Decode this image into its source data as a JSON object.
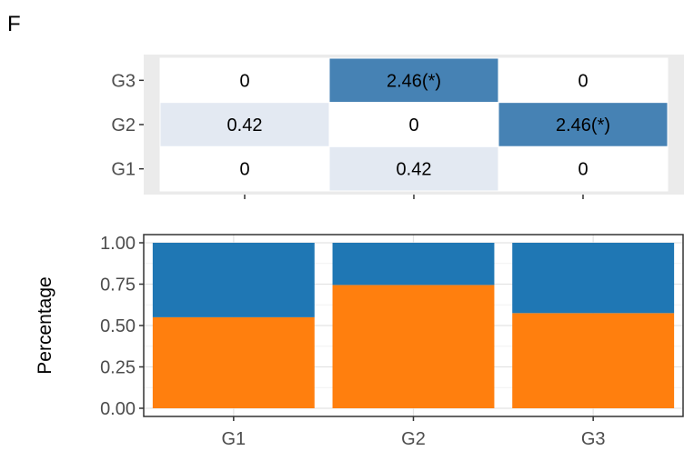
{
  "panel_label": "F",
  "colors": {
    "heat_low": "#e3e9f2",
    "heat_high": "#4682b4",
    "heat_bg": "#ebebeb",
    "bar_lower": "#ff7f0e",
    "bar_upper": "#1f77b4"
  },
  "chart_data": [
    {
      "type": "heatmap",
      "title": "",
      "x_categories": [
        "G1",
        "G2",
        "G3"
      ],
      "x_ticks_labeled": false,
      "y_categories": [
        "G1",
        "G2",
        "G3"
      ],
      "cells": [
        {
          "x": "G1",
          "y": "G3",
          "value": 0,
          "label": "0"
        },
        {
          "x": "G2",
          "y": "G3",
          "value": 2.46,
          "label": "2.46(*)"
        },
        {
          "x": "G3",
          "y": "G3",
          "value": 0,
          "label": "0"
        },
        {
          "x": "G1",
          "y": "G2",
          "value": 0.42,
          "label": "0.42"
        },
        {
          "x": "G2",
          "y": "G2",
          "value": 0,
          "label": "0"
        },
        {
          "x": "G3",
          "y": "G2",
          "value": 2.46,
          "label": "2.46(*)"
        },
        {
          "x": "G1",
          "y": "G1",
          "value": 0,
          "label": "0"
        },
        {
          "x": "G2",
          "y": "G1",
          "value": 0.42,
          "label": "0.42"
        },
        {
          "x": "G3",
          "y": "G1",
          "value": 0,
          "label": "0"
        }
      ]
    },
    {
      "type": "bar",
      "stacked": true,
      "title": "",
      "categories": [
        "G1",
        "G2",
        "G3"
      ],
      "series": [
        {
          "values": [
            0.55,
            0.745,
            0.575
          ],
          "color": "#ff7f0e"
        },
        {
          "values": [
            0.45,
            0.255,
            0.425
          ],
          "color": "#1f77b4"
        }
      ],
      "xlabel": "",
      "ylabel": "Percentage",
      "ylim": [
        0,
        1
      ],
      "yticks": [
        "0.00",
        "0.25",
        "0.50",
        "0.75",
        "1.00"
      ],
      "grid": true,
      "legend": "none"
    }
  ]
}
